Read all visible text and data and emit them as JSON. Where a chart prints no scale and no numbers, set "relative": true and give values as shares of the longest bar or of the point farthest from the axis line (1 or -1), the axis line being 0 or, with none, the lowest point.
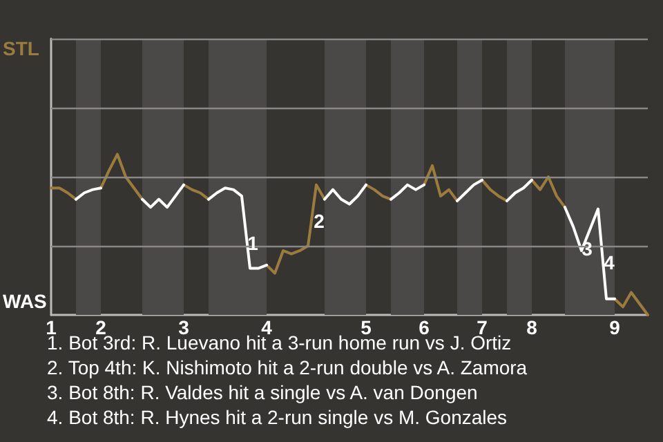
{
  "chart_data": {
    "type": "line",
    "relative": true,
    "categories": [
      "1",
      null,
      null,
      null,
      null,
      null,
      "2",
      null,
      null,
      null,
      null,
      null,
      null,
      null,
      null,
      null,
      "3",
      null,
      null,
      null,
      null,
      null,
      null,
      null,
      null,
      null,
      "4",
      null,
      null,
      null,
      null,
      null,
      null,
      null,
      null,
      null,
      null,
      null,
      "5",
      null,
      null,
      null,
      null,
      null,
      null,
      "6",
      null,
      null,
      null,
      null,
      null,
      null,
      "7",
      null,
      null,
      null,
      null,
      null,
      "8",
      null,
      null,
      null,
      null,
      null,
      null,
      null,
      null,
      null,
      "9",
      null,
      null,
      null,
      null
    ],
    "marker": "none",
    "line_style": "solid",
    "series": [
      {
        "name": "STL",
        "color": "#9c7c3c",
        "values": [
          0.79,
          0.79,
          0.76,
          0.72,
          null,
          null,
          0.79,
          0.9,
          1,
          0.86,
          0.79,
          0.72,
          null,
          null,
          null,
          null,
          0.81,
          0.78,
          0.76,
          0.72,
          null,
          null,
          null,
          null,
          null,
          null,
          0.31,
          0.26,
          0.4,
          0.38,
          0.4,
          0.43,
          0.81,
          0.72,
          null,
          null,
          null,
          null,
          0.81,
          0.78,
          0.74,
          0.72,
          null,
          null,
          null,
          0.81,
          0.93,
          0.74,
          0.78,
          0.71,
          null,
          null,
          0.84,
          0.78,
          0.74,
          0.71,
          null,
          null,
          0.84,
          0.78,
          0.86,
          0.74,
          0.67,
          null,
          null,
          null,
          null,
          null,
          0.1,
          0.05,
          0.14,
          0.07,
          0
        ]
      },
      {
        "name": "WAS",
        "color": "#ffffff",
        "values": [
          null,
          null,
          null,
          0.72,
          0.76,
          0.78,
          0.79,
          null,
          null,
          null,
          null,
          0.72,
          0.67,
          0.72,
          0.67,
          0.74,
          0.81,
          null,
          null,
          0.72,
          0.76,
          0.79,
          0.78,
          0.74,
          0.29,
          0.29,
          0.31,
          null,
          null,
          null,
          null,
          null,
          null,
          0.72,
          0.78,
          0.72,
          0.69,
          0.74,
          0.81,
          null,
          null,
          0.72,
          0.76,
          0.81,
          0.78,
          0.81,
          null,
          null,
          null,
          0.71,
          0.76,
          0.81,
          0.84,
          null,
          null,
          0.71,
          0.76,
          0.79,
          0.84,
          null,
          null,
          null,
          0.67,
          0.55,
          0.4,
          0.53,
          0.66,
          0.1,
          0.1,
          null,
          null,
          null,
          null
        ]
      }
    ],
    "ref_lines": [
      {
        "axis": "y",
        "value": 0.43,
        "color": "#8a8886"
      },
      {
        "axis": "y",
        "value": 0.86,
        "color": "#8a8886"
      },
      {
        "axis": "y",
        "value": 1.29,
        "color": "#8a8886"
      },
      {
        "axis": "y",
        "value": 1.72,
        "color": "#8a8886"
      }
    ],
    "annotations": [
      "1",
      "2",
      "3",
      "4",
      "1. Bot 3rd: R. Luevano hit a 3-run home run vs J. Ortiz",
      "2. Top 4th: K. Nishimoto hit a 2-run double vs A. Zamora",
      "3. Bot 8th: R. Valdes hit a single vs A. van Dongen",
      "4. Bot 8th: R. Hynes hit a 2-run single vs M. Gonzales"
    ]
  }
}
